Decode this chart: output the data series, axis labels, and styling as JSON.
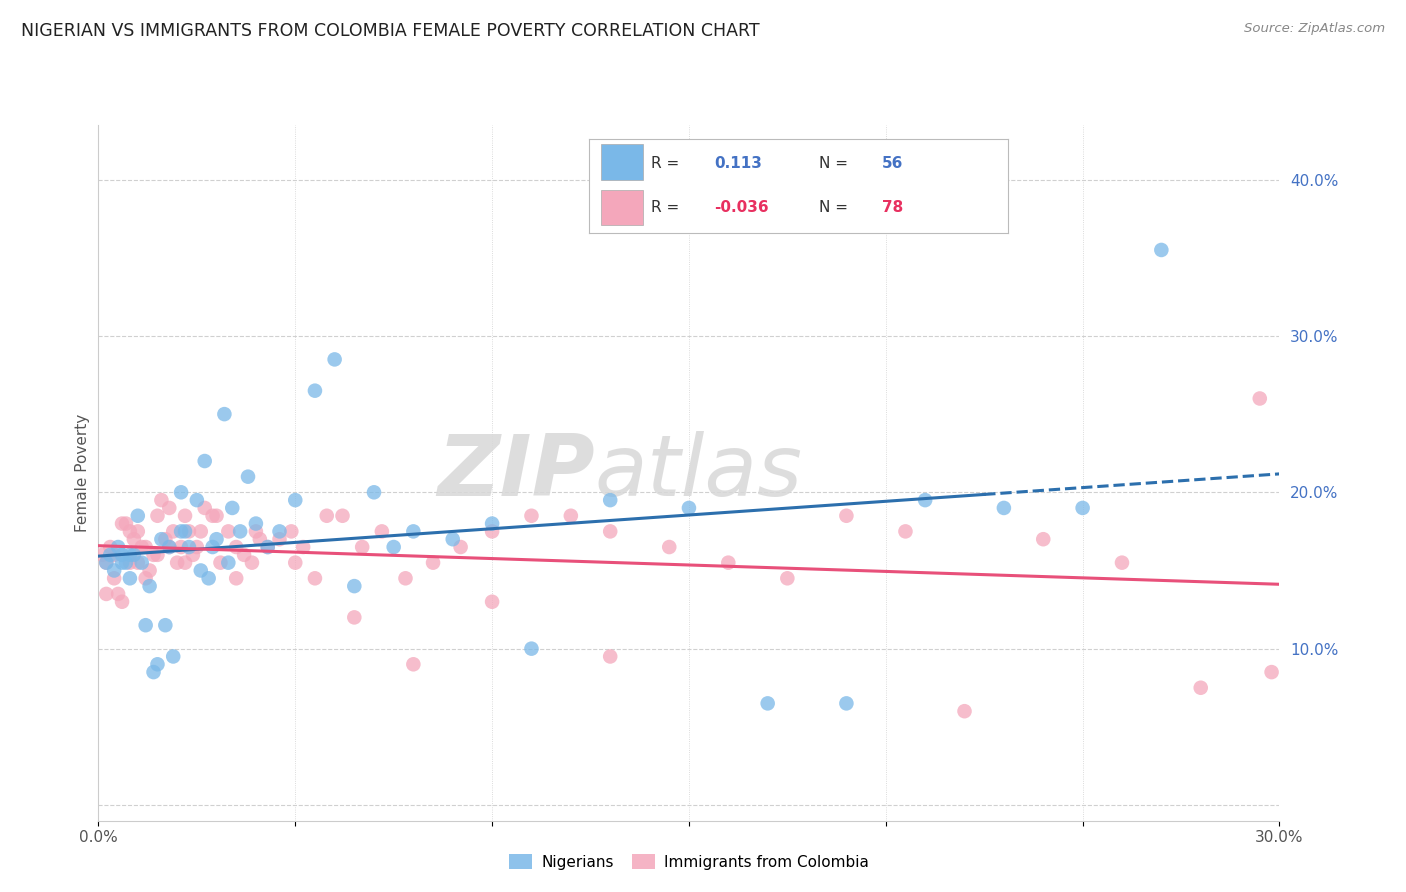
{
  "title": "NIGERIAN VS IMMIGRANTS FROM COLOMBIA FEMALE POVERTY CORRELATION CHART",
  "source": "Source: ZipAtlas.com",
  "ylabel": "Female Poverty",
  "xlim": [
    0.0,
    0.3
  ],
  "ylim": [
    -0.01,
    0.435
  ],
  "blue_color": "#7ab8e8",
  "pink_color": "#f4a7bb",
  "blue_line_color": "#2c6fad",
  "pink_line_color": "#e8507a",
  "watermark_zip": "ZIP",
  "watermark_atlas": "atlas",
  "right_tick_color": "#4472c4",
  "nigerian_x": [
    0.002,
    0.003,
    0.004,
    0.005,
    0.006,
    0.007,
    0.008,
    0.009,
    0.01,
    0.011,
    0.013,
    0.015,
    0.017,
    0.019,
    0.021,
    0.023,
    0.025,
    0.027,
    0.03,
    0.032,
    0.034,
    0.036,
    0.038,
    0.04,
    0.043,
    0.046,
    0.05,
    0.055,
    0.06,
    0.065,
    0.07,
    0.075,
    0.08,
    0.09,
    0.1,
    0.11,
    0.13,
    0.15,
    0.17,
    0.19,
    0.21,
    0.23,
    0.25,
    0.27,
    0.029,
    0.033,
    0.021,
    0.016,
    0.014,
    0.012,
    0.018,
    0.022,
    0.026,
    0.028,
    0.008,
    0.006
  ],
  "nigerian_y": [
    0.155,
    0.16,
    0.15,
    0.165,
    0.16,
    0.155,
    0.145,
    0.16,
    0.185,
    0.155,
    0.14,
    0.09,
    0.115,
    0.095,
    0.175,
    0.165,
    0.195,
    0.22,
    0.17,
    0.25,
    0.19,
    0.175,
    0.21,
    0.18,
    0.165,
    0.175,
    0.195,
    0.265,
    0.285,
    0.14,
    0.2,
    0.165,
    0.175,
    0.17,
    0.18,
    0.1,
    0.195,
    0.19,
    0.065,
    0.065,
    0.195,
    0.19,
    0.19,
    0.355,
    0.165,
    0.155,
    0.2,
    0.17,
    0.085,
    0.115,
    0.165,
    0.175,
    0.15,
    0.145,
    0.16,
    0.155
  ],
  "colombia_x": [
    0.001,
    0.002,
    0.003,
    0.004,
    0.005,
    0.006,
    0.007,
    0.008,
    0.009,
    0.01,
    0.011,
    0.012,
    0.013,
    0.014,
    0.015,
    0.016,
    0.017,
    0.018,
    0.019,
    0.02,
    0.021,
    0.022,
    0.023,
    0.024,
    0.025,
    0.027,
    0.029,
    0.031,
    0.033,
    0.035,
    0.037,
    0.039,
    0.041,
    0.043,
    0.046,
    0.049,
    0.052,
    0.055,
    0.058,
    0.062,
    0.067,
    0.072,
    0.078,
    0.085,
    0.092,
    0.1,
    0.11,
    0.12,
    0.13,
    0.145,
    0.16,
    0.175,
    0.19,
    0.205,
    0.22,
    0.24,
    0.26,
    0.28,
    0.295,
    0.298,
    0.002,
    0.004,
    0.006,
    0.008,
    0.01,
    0.012,
    0.015,
    0.018,
    0.022,
    0.026,
    0.03,
    0.035,
    0.04,
    0.05,
    0.065,
    0.08,
    0.1,
    0.13
  ],
  "colombia_y": [
    0.16,
    0.155,
    0.165,
    0.145,
    0.135,
    0.13,
    0.18,
    0.175,
    0.17,
    0.155,
    0.165,
    0.145,
    0.15,
    0.16,
    0.185,
    0.195,
    0.17,
    0.165,
    0.175,
    0.155,
    0.165,
    0.155,
    0.175,
    0.16,
    0.165,
    0.19,
    0.185,
    0.155,
    0.175,
    0.145,
    0.16,
    0.155,
    0.17,
    0.165,
    0.17,
    0.175,
    0.165,
    0.145,
    0.185,
    0.185,
    0.165,
    0.175,
    0.145,
    0.155,
    0.165,
    0.175,
    0.185,
    0.185,
    0.175,
    0.165,
    0.155,
    0.145,
    0.185,
    0.175,
    0.06,
    0.17,
    0.155,
    0.075,
    0.26,
    0.085,
    0.135,
    0.16,
    0.18,
    0.155,
    0.175,
    0.165,
    0.16,
    0.19,
    0.185,
    0.175,
    0.185,
    0.165,
    0.175,
    0.155,
    0.12,
    0.09,
    0.13,
    0.095
  ]
}
